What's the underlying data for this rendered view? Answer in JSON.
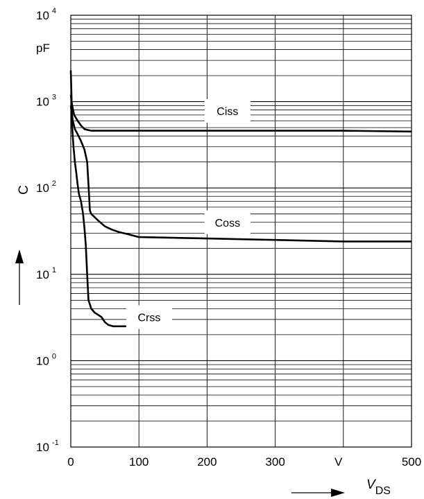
{
  "chart_data": {
    "type": "line",
    "title": "",
    "xlabel": "V",
    "xlabel_sub": "DS",
    "ylabel": "C",
    "x_unit": "V",
    "y_unit": "pF",
    "xlim": [
      0,
      500
    ],
    "ylim": [
      0.1,
      10000
    ],
    "y_scale": "log",
    "grid": true,
    "x_ticks": [
      "0",
      "100",
      "200",
      "300",
      "500"
    ],
    "y_ticks": [
      {
        "base": "10",
        "exp": "-1",
        "value": 0.1
      },
      {
        "base": "10",
        "exp": "0",
        "value": 1
      },
      {
        "base": "10",
        "exp": "1",
        "value": 10
      },
      {
        "base": "10",
        "exp": "2",
        "value": 100
      },
      {
        "base": "10",
        "exp": "3",
        "value": 1000
      },
      {
        "base": "10",
        "exp": "4",
        "value": 10000
      }
    ],
    "series": [
      {
        "name": "Ciss",
        "label_at": {
          "x": 230,
          "y": 780
        },
        "points": [
          [
            0,
            1200
          ],
          [
            2,
            900
          ],
          [
            5,
            700
          ],
          [
            10,
            600
          ],
          [
            15,
            530
          ],
          [
            20,
            480
          ],
          [
            30,
            460
          ],
          [
            100,
            460
          ],
          [
            200,
            460
          ],
          [
            300,
            460
          ],
          [
            400,
            460
          ],
          [
            500,
            450
          ]
        ]
      },
      {
        "name": "Coss",
        "label_at": {
          "x": 230,
          "y": 40
        },
        "points": [
          [
            0,
            900
          ],
          [
            3,
            600
          ],
          [
            6,
            480
          ],
          [
            10,
            420
          ],
          [
            15,
            350
          ],
          [
            20,
            280
          ],
          [
            24,
            200
          ],
          [
            26,
            110
          ],
          [
            28,
            55
          ],
          [
            30,
            50
          ],
          [
            40,
            42
          ],
          [
            50,
            36
          ],
          [
            60,
            33
          ],
          [
            70,
            31
          ],
          [
            85,
            29
          ],
          [
            100,
            27
          ],
          [
            200,
            26
          ],
          [
            300,
            25
          ],
          [
            400,
            24
          ],
          [
            500,
            24
          ]
        ]
      },
      {
        "name": "Crss",
        "label_at": {
          "x": 115,
          "y": 3.2
        },
        "points": [
          [
            0,
            2300
          ],
          [
            1,
            1200
          ],
          [
            2,
            500
          ],
          [
            4,
            300
          ],
          [
            6,
            200
          ],
          [
            8,
            150
          ],
          [
            10,
            110
          ],
          [
            12,
            85
          ],
          [
            15,
            70
          ],
          [
            18,
            50
          ],
          [
            20,
            35
          ],
          [
            22,
            22
          ],
          [
            24,
            10
          ],
          [
            26,
            5
          ],
          [
            28,
            4.5
          ],
          [
            30,
            4
          ],
          [
            35,
            3.6
          ],
          [
            40,
            3.4
          ],
          [
            45,
            3.2
          ],
          [
            50,
            2.8
          ],
          [
            55,
            2.6
          ],
          [
            62,
            2.5
          ],
          [
            70,
            2.5
          ],
          [
            100,
            2.5
          ]
        ]
      }
    ]
  }
}
